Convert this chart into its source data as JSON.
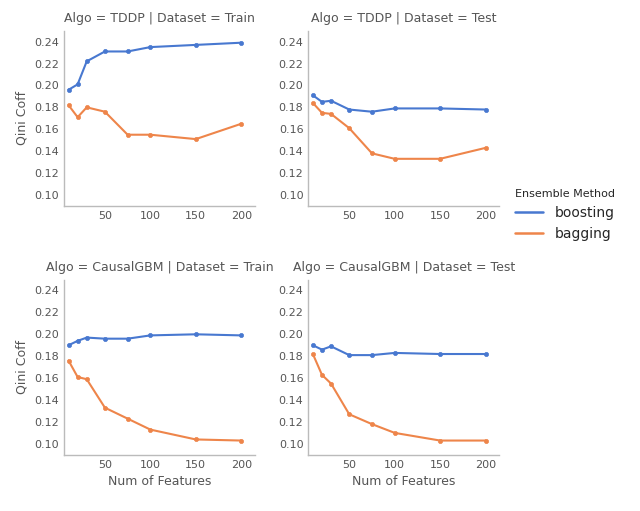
{
  "x_values": [
    10,
    20,
    30,
    50,
    75,
    100,
    150,
    200
  ],
  "subplots": [
    {
      "title": "Algo = TDDP | Dataset = Train",
      "boosting": [
        0.196,
        0.201,
        0.222,
        0.231,
        0.231,
        0.235,
        0.237,
        0.239
      ],
      "bagging": [
        0.182,
        0.171,
        0.18,
        0.176,
        0.155,
        0.155,
        0.151,
        0.165
      ]
    },
    {
      "title": "Algo = TDDP | Dataset = Test",
      "boosting": [
        0.191,
        0.185,
        0.186,
        0.178,
        0.176,
        0.179,
        0.179,
        0.178
      ],
      "bagging": [
        0.184,
        0.175,
        0.174,
        0.161,
        0.138,
        0.133,
        0.133,
        0.143
      ]
    },
    {
      "title": "Algo = CausalGBM | Dataset = Train",
      "boosting": [
        0.19,
        0.194,
        0.197,
        0.196,
        0.196,
        0.199,
        0.2,
        0.199
      ],
      "bagging": [
        0.176,
        0.161,
        0.159,
        0.133,
        0.123,
        0.113,
        0.104,
        0.103
      ]
    },
    {
      "title": "Algo = CausalGBM | Dataset = Test",
      "boosting": [
        0.19,
        0.186,
        0.189,
        0.181,
        0.181,
        0.183,
        0.182,
        0.182
      ],
      "bagging": [
        0.182,
        0.163,
        0.155,
        0.127,
        0.118,
        0.11,
        0.103,
        0.103
      ]
    }
  ],
  "xlabel": "Num of Features",
  "ylabel": "Qini Coff",
  "ylim": [
    0.09,
    0.25
  ],
  "yticks": [
    0.1,
    0.12,
    0.14,
    0.16,
    0.18,
    0.2,
    0.22,
    0.24
  ],
  "xticks": [
    50,
    100,
    150,
    200
  ],
  "boosting_color": "#4878d0",
  "bagging_color": "#ee854a",
  "legend_title": "Ensemble Method",
  "legend_labels": [
    "boosting",
    "bagging"
  ],
  "title_fontsize": 9,
  "axis_fontsize": 9,
  "tick_fontsize": 8,
  "legend_fontsize": 10
}
